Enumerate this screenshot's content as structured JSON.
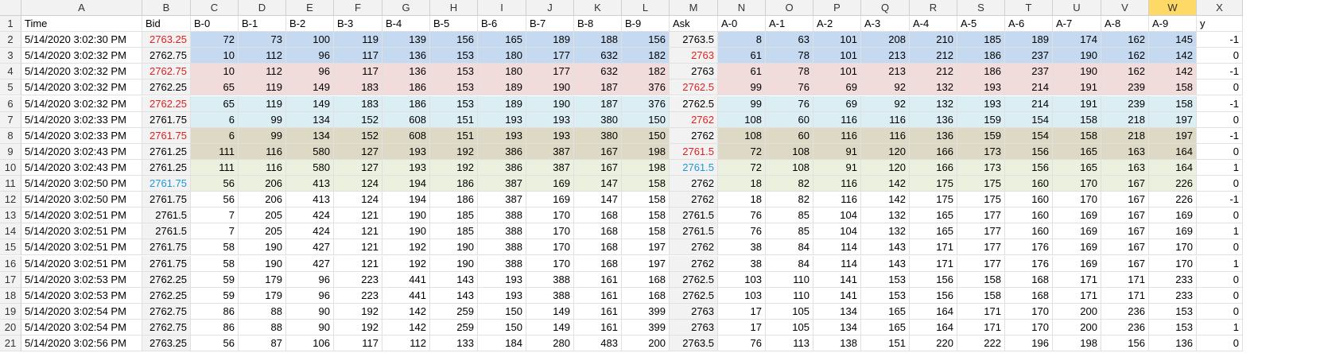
{
  "column_letters": [
    "A",
    "B",
    "C",
    "D",
    "E",
    "F",
    "G",
    "H",
    "I",
    "J",
    "K",
    "L",
    "M",
    "N",
    "O",
    "P",
    "Q",
    "R",
    "S",
    "T",
    "U",
    "V",
    "W",
    "X"
  ],
  "selected_column": "W",
  "colors": {
    "red_text": "#e02020",
    "blue_text": "#1f9ad6",
    "band_blue": "#c5d9f1",
    "band_pink": "#f2dcdb",
    "band_lightblue": "#daeef3",
    "band_tan": "#ddd9c4",
    "band_green": "#ebf1de",
    "header_gray": "#f2f2f2",
    "selected_header": "#ffd966"
  },
  "rows": [
    {
      "n": "1",
      "cells": [
        "Time",
        "Bid",
        "B-0",
        "B-1",
        "B-2",
        "B-3",
        "B-4",
        "B-5",
        "B-6",
        "B-7",
        "B-8",
        "B-9",
        "Ask",
        "A-0",
        "A-1",
        "A-2",
        "A-3",
        "A-4",
        "A-5",
        "A-6",
        "A-7",
        "A-8",
        "A-9",
        "y"
      ]
    },
    {
      "n": "2",
      "band": "blue",
      "bidColor": "red",
      "cells": [
        "5/14/2020 3:02:30 PM",
        "2763.25",
        "72",
        "73",
        "100",
        "119",
        "139",
        "156",
        "165",
        "189",
        "188",
        "156",
        "2763.5",
        "8",
        "63",
        "101",
        "208",
        "210",
        "185",
        "189",
        "174",
        "162",
        "145",
        "-1"
      ]
    },
    {
      "n": "3",
      "band": "blue",
      "askColor": "red",
      "cells": [
        "5/14/2020 3:02:32 PM",
        "2762.75",
        "10",
        "112",
        "96",
        "117",
        "136",
        "153",
        "180",
        "177",
        "632",
        "182",
        "2763",
        "61",
        "78",
        "101",
        "213",
        "212",
        "186",
        "237",
        "190",
        "162",
        "142",
        "0"
      ]
    },
    {
      "n": "4",
      "band": "pink",
      "bidColor": "red",
      "cells": [
        "5/14/2020 3:02:32 PM",
        "2762.75",
        "10",
        "112",
        "96",
        "117",
        "136",
        "153",
        "180",
        "177",
        "632",
        "182",
        "2763",
        "61",
        "78",
        "101",
        "213",
        "212",
        "186",
        "237",
        "190",
        "162",
        "142",
        "-1"
      ]
    },
    {
      "n": "5",
      "band": "pink",
      "askColor": "red",
      "cells": [
        "5/14/2020 3:02:32 PM",
        "2762.25",
        "65",
        "119",
        "149",
        "183",
        "186",
        "153",
        "189",
        "190",
        "187",
        "376",
        "2762.5",
        "99",
        "76",
        "69",
        "92",
        "132",
        "193",
        "214",
        "191",
        "239",
        "158",
        "0"
      ]
    },
    {
      "n": "6",
      "band": "lightblue",
      "bidColor": "red",
      "cells": [
        "5/14/2020 3:02:32 PM",
        "2762.25",
        "65",
        "119",
        "149",
        "183",
        "186",
        "153",
        "189",
        "190",
        "187",
        "376",
        "2762.5",
        "99",
        "76",
        "69",
        "92",
        "132",
        "193",
        "214",
        "191",
        "239",
        "158",
        "-1"
      ]
    },
    {
      "n": "7",
      "band": "lightblue",
      "askColor": "red",
      "cells": [
        "5/14/2020 3:02:33 PM",
        "2761.75",
        "6",
        "99",
        "134",
        "152",
        "608",
        "151",
        "193",
        "193",
        "380",
        "150",
        "2762",
        "108",
        "60",
        "116",
        "116",
        "136",
        "159",
        "154",
        "158",
        "218",
        "197",
        "0"
      ]
    },
    {
      "n": "8",
      "band": "tan",
      "bidColor": "red",
      "cells": [
        "5/14/2020 3:02:33 PM",
        "2761.75",
        "6",
        "99",
        "134",
        "152",
        "608",
        "151",
        "193",
        "193",
        "380",
        "150",
        "2762",
        "108",
        "60",
        "116",
        "116",
        "136",
        "159",
        "154",
        "158",
        "218",
        "197",
        "-1"
      ]
    },
    {
      "n": "9",
      "band": "tan",
      "askColor": "red",
      "cells": [
        "5/14/2020 3:02:43 PM",
        "2761.25",
        "111",
        "116",
        "580",
        "127",
        "193",
        "192",
        "386",
        "387",
        "167",
        "198",
        "2761.5",
        "72",
        "108",
        "91",
        "120",
        "166",
        "173",
        "156",
        "165",
        "163",
        "164",
        "0"
      ]
    },
    {
      "n": "10",
      "band": "green",
      "askColor": "blue",
      "cells": [
        "5/14/2020 3:02:43 PM",
        "2761.25",
        "111",
        "116",
        "580",
        "127",
        "193",
        "192",
        "386",
        "387",
        "167",
        "198",
        "2761.5",
        "72",
        "108",
        "91",
        "120",
        "166",
        "173",
        "156",
        "165",
        "163",
        "164",
        "1"
      ]
    },
    {
      "n": "11",
      "band": "green",
      "bidColor": "blue",
      "cells": [
        "5/14/2020 3:02:50 PM",
        "2761.75",
        "56",
        "206",
        "413",
        "124",
        "194",
        "186",
        "387",
        "169",
        "147",
        "158",
        "2762",
        "18",
        "82",
        "116",
        "142",
        "175",
        "175",
        "160",
        "170",
        "167",
        "226",
        "0"
      ]
    },
    {
      "n": "12",
      "cells": [
        "5/14/2020 3:02:50 PM",
        "2761.75",
        "56",
        "206",
        "413",
        "124",
        "194",
        "186",
        "387",
        "169",
        "147",
        "158",
        "2762",
        "18",
        "82",
        "116",
        "142",
        "175",
        "175",
        "160",
        "170",
        "167",
        "226",
        "-1"
      ]
    },
    {
      "n": "13",
      "cells": [
        "5/14/2020 3:02:51 PM",
        "2761.5",
        "7",
        "205",
        "424",
        "121",
        "190",
        "185",
        "388",
        "170",
        "168",
        "158",
        "2761.5",
        "76",
        "85",
        "104",
        "132",
        "165",
        "177",
        "160",
        "169",
        "167",
        "169",
        "0"
      ]
    },
    {
      "n": "14",
      "cells": [
        "5/14/2020 3:02:51 PM",
        "2761.5",
        "7",
        "205",
        "424",
        "121",
        "190",
        "185",
        "388",
        "170",
        "168",
        "158",
        "2761.5",
        "76",
        "85",
        "104",
        "132",
        "165",
        "177",
        "160",
        "169",
        "167",
        "169",
        "1"
      ]
    },
    {
      "n": "15",
      "cells": [
        "5/14/2020 3:02:51 PM",
        "2761.75",
        "58",
        "190",
        "427",
        "121",
        "192",
        "190",
        "388",
        "170",
        "168",
        "197",
        "2762",
        "38",
        "84",
        "114",
        "143",
        "171",
        "177",
        "176",
        "169",
        "167",
        "170",
        "0"
      ]
    },
    {
      "n": "16",
      "cells": [
        "5/14/2020 3:02:51 PM",
        "2761.75",
        "58",
        "190",
        "427",
        "121",
        "192",
        "190",
        "388",
        "170",
        "168",
        "197",
        "2762",
        "38",
        "84",
        "114",
        "143",
        "171",
        "177",
        "176",
        "169",
        "167",
        "170",
        "1"
      ]
    },
    {
      "n": "17",
      "cells": [
        "5/14/2020 3:02:53 PM",
        "2762.25",
        "59",
        "179",
        "96",
        "223",
        "441",
        "143",
        "193",
        "388",
        "161",
        "168",
        "2762.5",
        "103",
        "110",
        "141",
        "153",
        "156",
        "158",
        "168",
        "171",
        "171",
        "233",
        "0"
      ]
    },
    {
      "n": "18",
      "cells": [
        "5/14/2020 3:02:53 PM",
        "2762.25",
        "59",
        "179",
        "96",
        "223",
        "441",
        "143",
        "193",
        "388",
        "161",
        "168",
        "2762.5",
        "103",
        "110",
        "141",
        "153",
        "156",
        "158",
        "168",
        "171",
        "171",
        "233",
        "0"
      ]
    },
    {
      "n": "19",
      "cells": [
        "5/14/2020 3:02:54 PM",
        "2762.75",
        "86",
        "88",
        "90",
        "192",
        "142",
        "259",
        "150",
        "149",
        "161",
        "399",
        "2763",
        "17",
        "105",
        "134",
        "165",
        "164",
        "171",
        "170",
        "200",
        "236",
        "153",
        "0"
      ]
    },
    {
      "n": "20",
      "cells": [
        "5/14/2020 3:02:54 PM",
        "2762.75",
        "86",
        "88",
        "90",
        "192",
        "142",
        "259",
        "150",
        "149",
        "161",
        "399",
        "2763",
        "17",
        "105",
        "134",
        "165",
        "164",
        "171",
        "170",
        "200",
        "236",
        "153",
        "1"
      ]
    },
    {
      "n": "21",
      "cells": [
        "5/14/2020 3:02:56 PM",
        "2763.25",
        "56",
        "87",
        "106",
        "117",
        "112",
        "133",
        "184",
        "280",
        "483",
        "200",
        "2763.5",
        "76",
        "113",
        "138",
        "151",
        "220",
        "222",
        "196",
        "198",
        "156",
        "136",
        "0"
      ]
    }
  ]
}
